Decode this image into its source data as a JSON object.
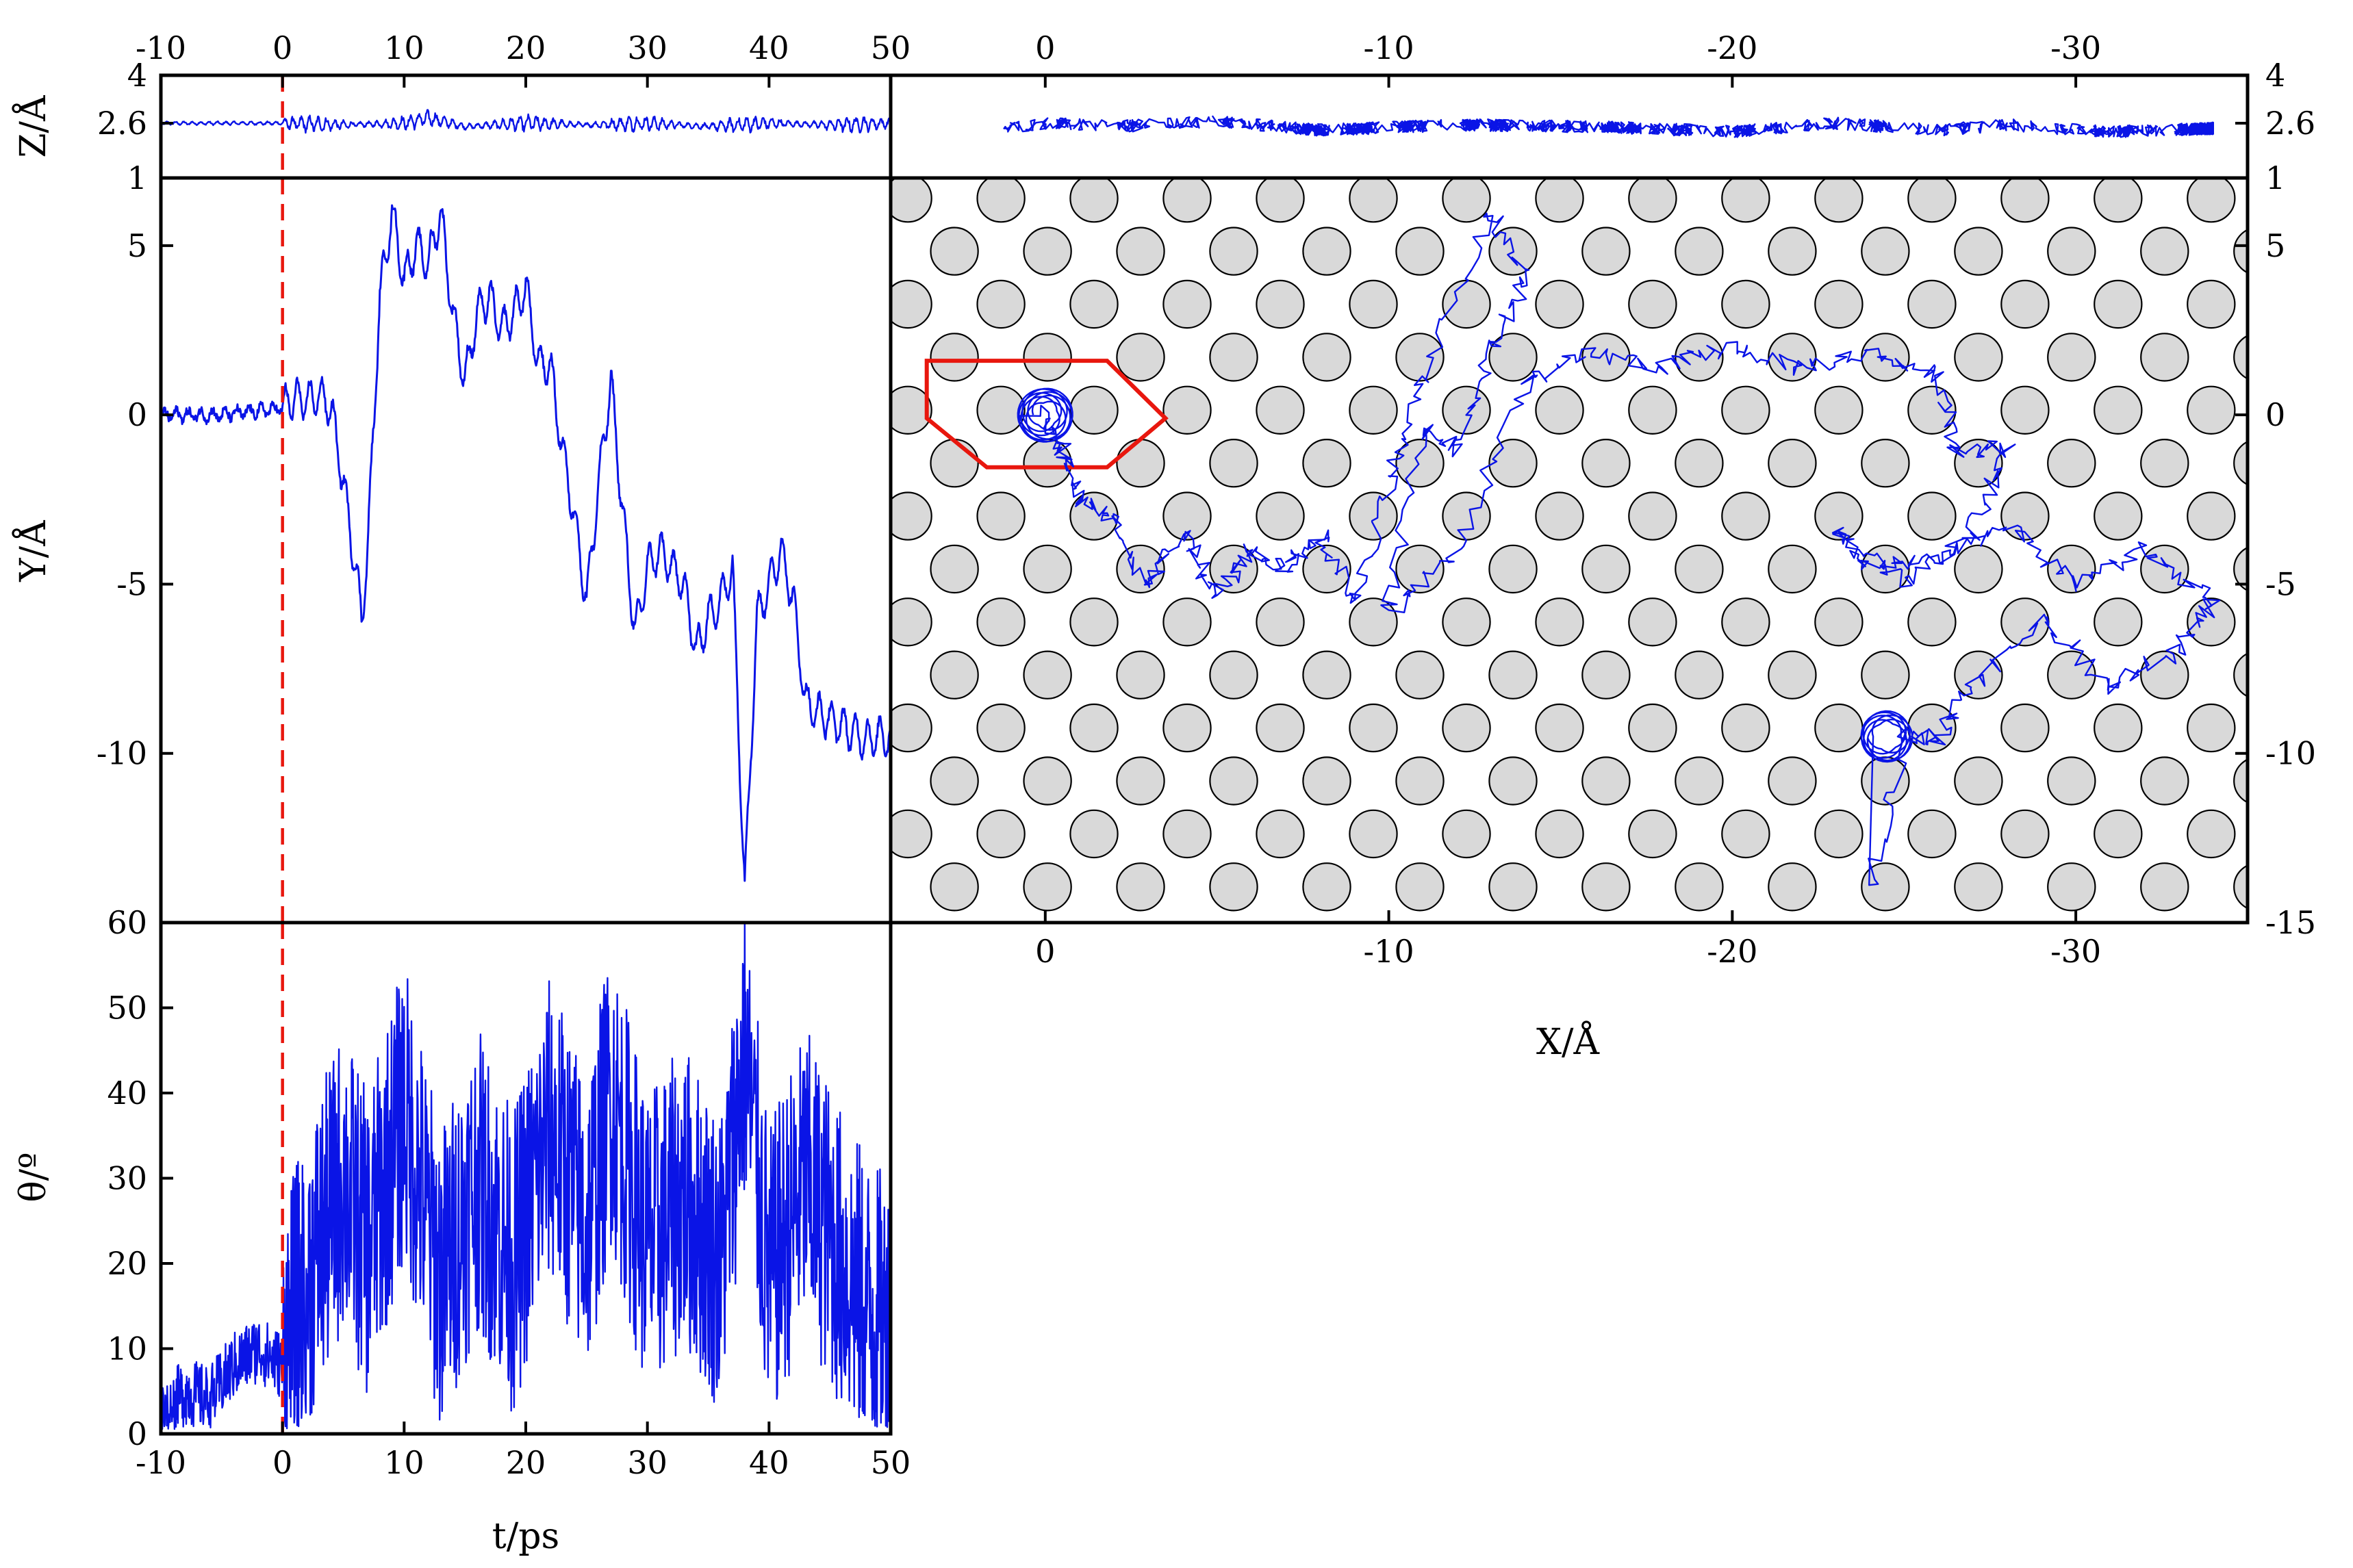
{
  "colors": {
    "trace": "#0a14e6",
    "atom_fill": "#d9d9d9",
    "atom_edge": "#000000",
    "hexagon": "#e8170e",
    "t_zero_line": "#e8170e"
  },
  "chart_data": [
    {
      "id": "z_vs_t",
      "type": "line",
      "xlabel": "",
      "ylabel": "Z/Å",
      "xlim": [
        -10,
        50
      ],
      "ylim": [
        1,
        4
      ],
      "xticks": [
        "-10",
        "0",
        "10",
        "20",
        "30",
        "40",
        "50"
      ],
      "yticks": [
        "4",
        "2.6",
        "1"
      ],
      "vline_x": 0,
      "series": [
        {
          "x": [
            -10,
            -5,
            0,
            5,
            10,
            12,
            15,
            20,
            25,
            30,
            35,
            40,
            45,
            50
          ],
          "y": [
            2.6,
            2.6,
            2.6,
            2.55,
            2.6,
            2.75,
            2.5,
            2.6,
            2.55,
            2.6,
            2.5,
            2.6,
            2.55,
            2.6
          ]
        }
      ]
    },
    {
      "id": "z_vs_x",
      "type": "line",
      "xlabel": "",
      "ylabel": "",
      "xlim": [
        4.5,
        -35
      ],
      "ylim": [
        1,
        4
      ],
      "xticks": [
        "0",
        "-10",
        "-20",
        "-30"
      ],
      "yticks": [
        "4",
        "2.6",
        "1"
      ],
      "series": [
        {
          "x": [
            1.2,
            0,
            -2,
            -5,
            -8,
            -12,
            -16,
            -20,
            -23,
            -26,
            -28,
            -31,
            -34
          ],
          "y": [
            2.45,
            2.6,
            2.5,
            2.65,
            2.4,
            2.55,
            2.5,
            2.35,
            2.6,
            2.4,
            2.55,
            2.35,
            2.45
          ]
        }
      ]
    },
    {
      "id": "y_vs_t",
      "type": "line",
      "xlabel": "",
      "ylabel": "Y/Å",
      "xlim": [
        -10,
        50
      ],
      "ylim": [
        -15,
        7
      ],
      "yticks": [
        "5",
        "0",
        "-5",
        "-10"
      ],
      "vline_x": 0,
      "series": [
        {
          "x": [
            -10,
            -5,
            0,
            1,
            2,
            3,
            4,
            5,
            6,
            6.5,
            7,
            8,
            9,
            10,
            11,
            12,
            13,
            14,
            15,
            16,
            17,
            18,
            19,
            20,
            21,
            22,
            23,
            24,
            25,
            26,
            27,
            28,
            29,
            30,
            31,
            32,
            33,
            34,
            35,
            36,
            37,
            38,
            39,
            40,
            41,
            42,
            43,
            44,
            45,
            46,
            47,
            48,
            49,
            50
          ],
          "y": [
            0,
            0,
            0.2,
            0.5,
            0.4,
            0.6,
            0.2,
            -2,
            -4.5,
            -6,
            -4,
            3.5,
            6,
            4,
            5,
            4.5,
            6,
            3,
            1,
            3,
            3.5,
            2.5,
            3,
            3.8,
            1.5,
            1.5,
            -1,
            -3,
            -5.5,
            -2,
            1,
            -3,
            -6.5,
            -4.5,
            -4,
            -4.5,
            -5,
            -7,
            -6,
            -5.5,
            -4.5,
            -14,
            -6,
            -5,
            -4,
            -5.5,
            -8.5,
            -8.8,
            -9,
            -9.2,
            -9.4,
            -9.6,
            -9.5,
            -9.5
          ]
        }
      ]
    },
    {
      "id": "y_vs_x",
      "type": "scatter",
      "xlabel": "X/Å",
      "ylabel": "",
      "xlim": [
        4.5,
        -35
      ],
      "ylim": [
        -15,
        7
      ],
      "xticks": [
        "0",
        "-10",
        "-20",
        "-30"
      ],
      "yticks": [
        "5",
        "0",
        "-5",
        "-10",
        "-15"
      ],
      "lattice": {
        "spacing_x": 2.71,
        "row_spacing_y": 1.565,
        "first_row_y": 6.4,
        "rows": 14,
        "atom_radius": 0.69
      },
      "hexagon_vertices": [
        [
          3.4,
          1.6
        ],
        [
          -1.8,
          1.6
        ],
        [
          -3.5,
          -1.5
        ],
        [
          1.7,
          -1.5
        ],
        [
          -1.8,
          -1.5
        ],
        [
          3.4,
          1.6
        ]
      ],
      "series": [
        {
          "x": [
            0.2,
            -0.5,
            -1,
            -2,
            -3,
            -4,
            -5,
            -6,
            -7,
            -8,
            -9,
            -10,
            -11,
            -13,
            -14,
            -13,
            -12,
            -11,
            -10,
            -12,
            -14,
            -16,
            -18,
            -20,
            -22,
            -24,
            -26,
            -26.5,
            -28,
            -27,
            -25,
            -23,
            -24,
            -26,
            -28,
            -30,
            -32,
            -34,
            -33,
            -31,
            -29,
            -27,
            -26,
            -25,
            -24
          ],
          "y": [
            0.1,
            -1,
            -2.5,
            -3,
            -5,
            -3.5,
            -5.3,
            -4,
            -4.5,
            -3.5,
            -5.5,
            -2,
            1,
            6,
            4,
            2,
            -1,
            -0.5,
            -5.8,
            -4,
            1,
            1.8,
            1.4,
            2,
            1.4,
            1.8,
            1.2,
            -1,
            -1,
            -3.5,
            -5,
            -3.5,
            -4.5,
            -4.3,
            -3.2,
            -5,
            -4,
            -5.5,
            -7,
            -8,
            -6,
            -8,
            -9.5,
            -9.5,
            -14
          ]
        }
      ]
    },
    {
      "id": "theta_vs_t",
      "type": "line",
      "xlabel": "t/ps",
      "ylabel": "θ/º",
      "xlim": [
        -10,
        50
      ],
      "ylim": [
        0,
        60
      ],
      "xticks": [
        "-10",
        "0",
        "10",
        "20",
        "30",
        "40",
        "50"
      ],
      "yticks": [
        "60",
        "50",
        "40",
        "30",
        "20",
        "10",
        "0"
      ],
      "vline_x": 0,
      "series": [
        {
          "x": [
            -10,
            -8,
            -6,
            -4,
            -2,
            0,
            2,
            5,
            7,
            10,
            13,
            16,
            19,
            22,
            25,
            27,
            30,
            33,
            36,
            38,
            40,
            43,
            46,
            48,
            50
          ],
          "y": [
            2,
            5,
            4,
            8,
            10,
            8,
            18,
            30,
            22,
            38,
            18,
            30,
            20,
            36,
            24,
            40,
            22,
            28,
            20,
            45,
            18,
            30,
            20,
            15,
            12
          ]
        }
      ]
    }
  ]
}
